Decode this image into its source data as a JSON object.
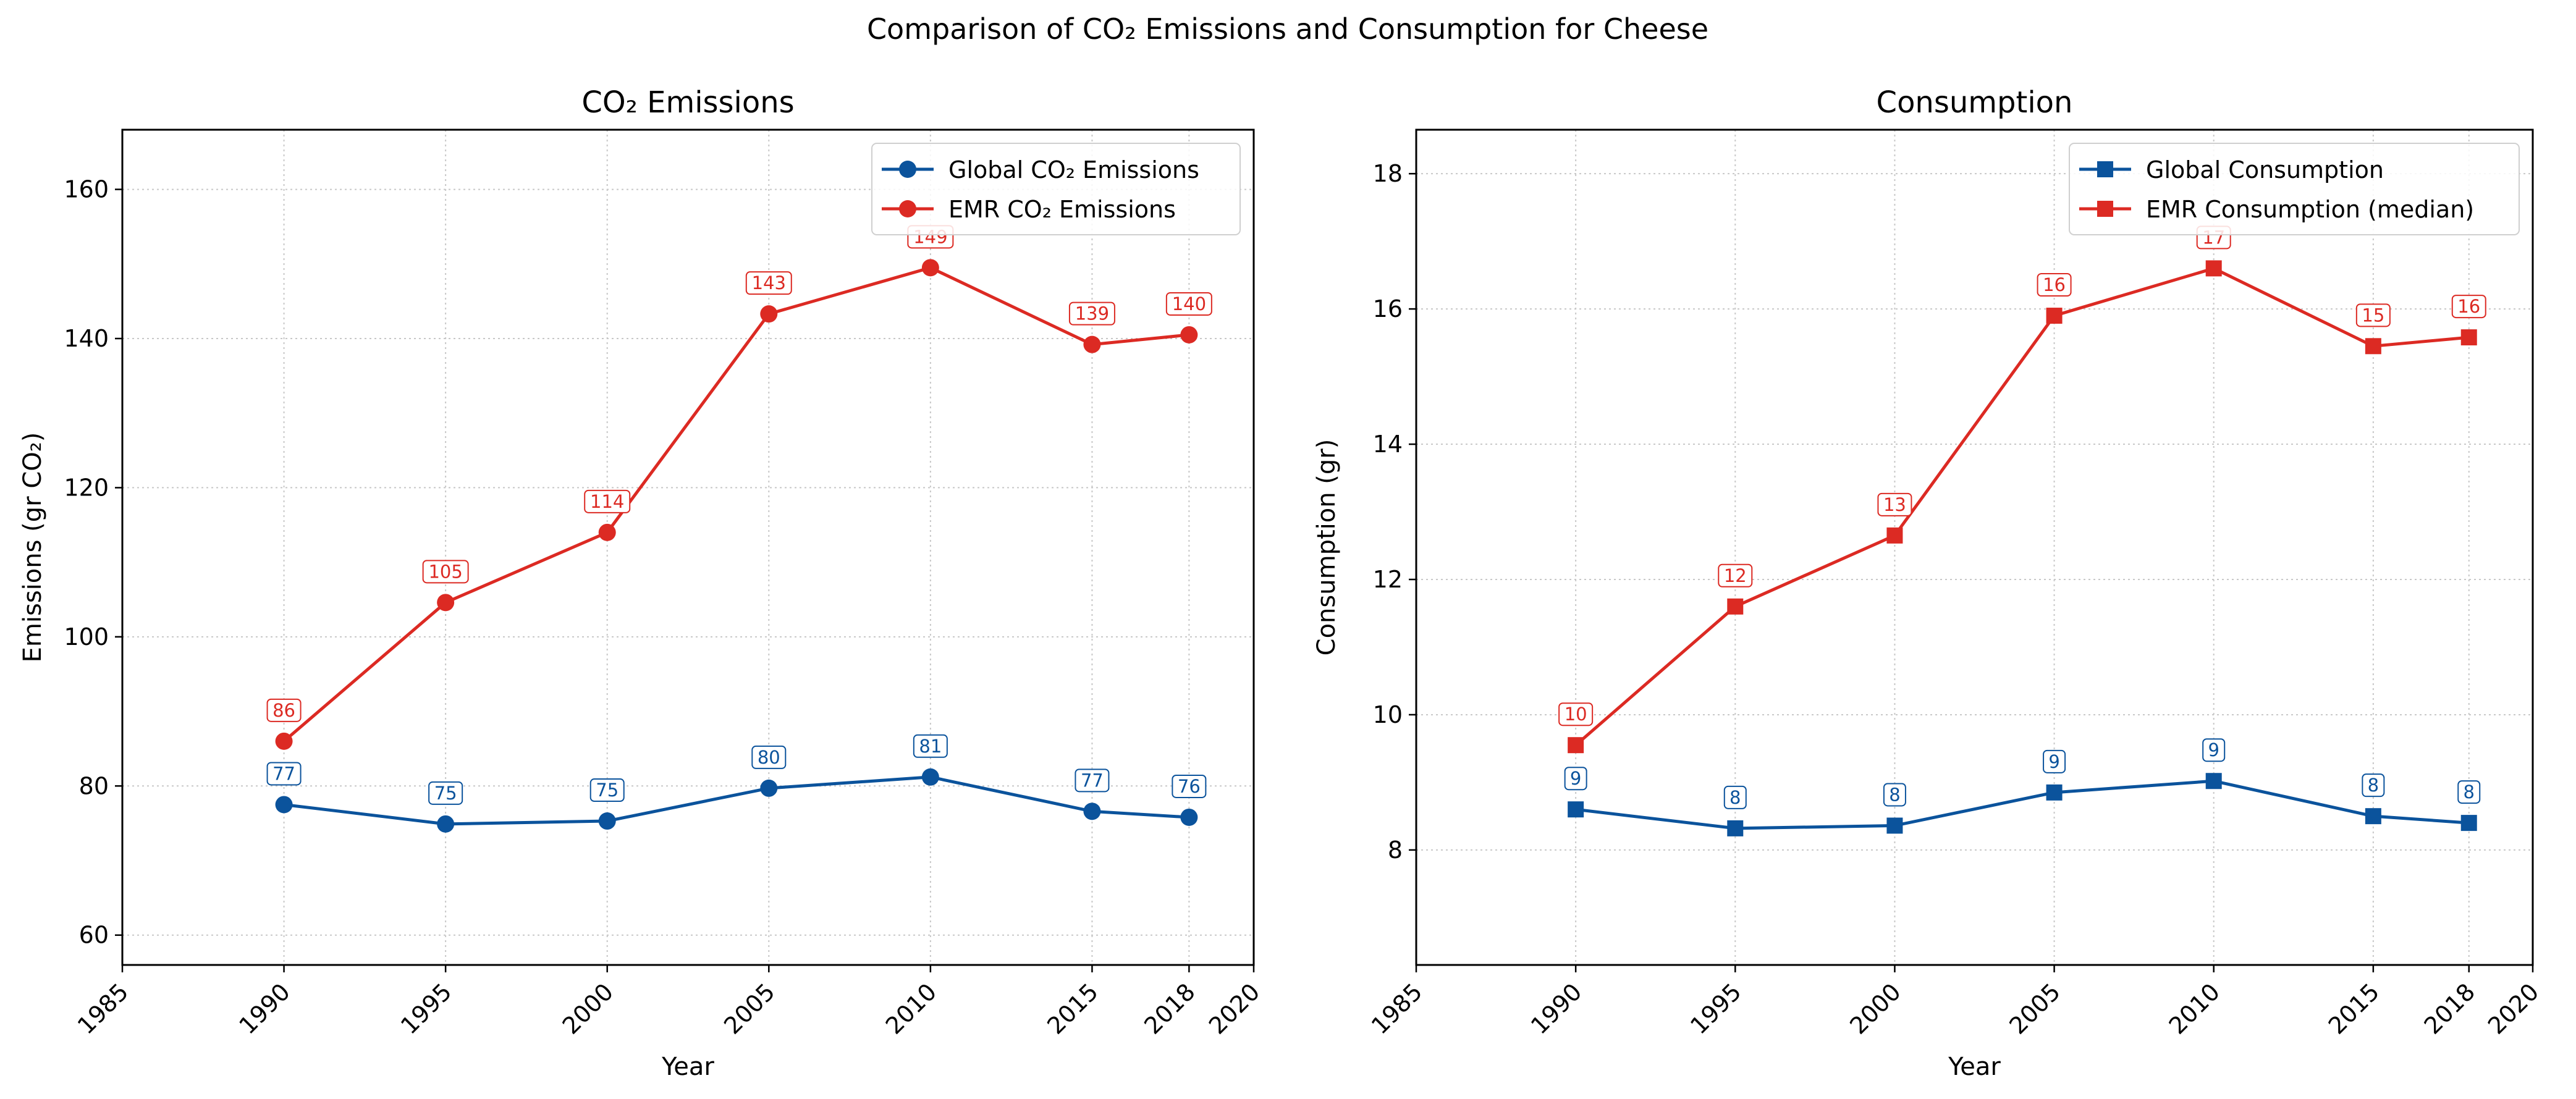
{
  "figure_title": "Comparison of CO₂ Emissions and Consumption for Cheese",
  "colors": {
    "global": "#0b539c",
    "emr": "#dc2a23",
    "grid": "#c8c8c8"
  },
  "chart_data": [
    {
      "type": "line",
      "title": "CO₂ Emissions",
      "xlabel": "Year",
      "ylabel": "Emissions (gr CO₂)",
      "x": [
        1990,
        1995,
        2000,
        2005,
        2010,
        2015,
        2018
      ],
      "xlim": [
        1985,
        2020
      ],
      "ylim": [
        56,
        168
      ],
      "xticks": [
        1985,
        1990,
        1995,
        2000,
        2005,
        2010,
        2015,
        2018,
        2020
      ],
      "yticks": [
        60,
        80,
        100,
        120,
        140,
        160
      ],
      "grid": true,
      "legend": "top-right",
      "marker": "circle",
      "series": [
        {
          "name": "Global CO₂ Emissions",
          "color": "#0b539c",
          "values": [
            77.5,
            74.9,
            75.3,
            79.7,
            81.2,
            76.6,
            75.8
          ],
          "labels": [
            "77",
            "75",
            "75",
            "80",
            "81",
            "77",
            "76"
          ]
        },
        {
          "name": "EMR CO₂ Emissions",
          "color": "#dc2a23",
          "values": [
            86.0,
            104.6,
            114.0,
            143.3,
            149.5,
            139.2,
            140.5
          ],
          "labels": [
            "86",
            "105",
            "114",
            "143",
            "149",
            "139",
            "140"
          ]
        }
      ]
    },
    {
      "type": "line",
      "title": "Consumption",
      "xlabel": "Year",
      "ylabel": "Consumption (gr)",
      "x": [
        1990,
        1995,
        2000,
        2005,
        2010,
        2015,
        2018
      ],
      "xlim": [
        1985,
        2020
      ],
      "ylim": [
        6.3,
        18.65
      ],
      "xticks": [
        1985,
        1990,
        1995,
        2000,
        2005,
        2010,
        2015,
        2018,
        2020
      ],
      "yticks": [
        8,
        10,
        12,
        14,
        16,
        18
      ],
      "grid": true,
      "legend": "top-right",
      "marker": "square",
      "series": [
        {
          "name": "Global Consumption",
          "color": "#0b539c",
          "values": [
            8.6,
            8.32,
            8.36,
            8.85,
            9.02,
            8.5,
            8.4
          ],
          "labels": [
            "9",
            "8",
            "8",
            "9",
            "9",
            "8",
            "8"
          ]
        },
        {
          "name": "EMR Consumption (median)",
          "color": "#dc2a23",
          "values": [
            9.55,
            11.6,
            12.65,
            15.9,
            16.6,
            15.45,
            15.58
          ],
          "labels": [
            "10",
            "12",
            "13",
            "16",
            "17",
            "15",
            "16"
          ]
        }
      ]
    }
  ]
}
